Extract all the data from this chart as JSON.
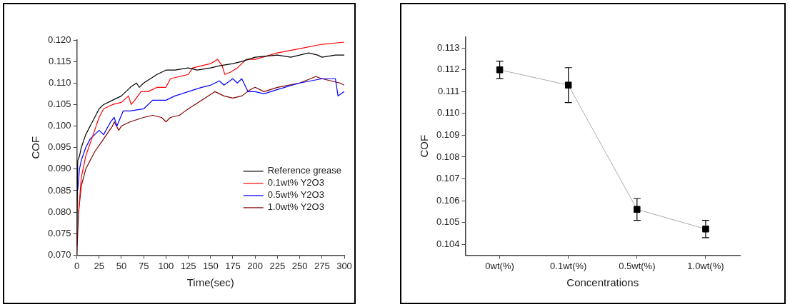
{
  "chart_data": [
    {
      "type": "line",
      "xlabel": "Time(sec)",
      "ylabel": "COF",
      "xlim": [
        0,
        300
      ],
      "xticks": [
        0,
        25,
        50,
        75,
        100,
        125,
        150,
        175,
        200,
        225,
        250,
        275,
        300
      ],
      "ylim": [
        0.07,
        0.12
      ],
      "yticks": [
        {
          "value": 0.07,
          "label": "0.070"
        },
        {
          "value": 0.075,
          "label": "0.075"
        },
        {
          "value": 0.08,
          "label": "0.080"
        },
        {
          "value": 0.085,
          "label": "0.085"
        },
        {
          "value": 0.09,
          "label": "0.090"
        },
        {
          "value": 0.095,
          "label": "0.095"
        },
        {
          "value": 0.1,
          "label": "0.100"
        },
        {
          "value": 0.105,
          "label": "0.105"
        },
        {
          "value": 0.11,
          "label": "0.110"
        },
        {
          "value": 0.115,
          "label": "0.115"
        },
        {
          "value": 0.12,
          "label": "0.120"
        }
      ],
      "grid": false,
      "legend": "bottom right",
      "marker": "none",
      "line_style": "solid",
      "series": [
        {
          "name": "Reference grease",
          "color": "#000000",
          "x": [
            0,
            1,
            3,
            5,
            10,
            15,
            20,
            25,
            30,
            40,
            50,
            60,
            67,
            70,
            75,
            90,
            100,
            110,
            125,
            135,
            150,
            160,
            175,
            185,
            200,
            225,
            240,
            260,
            270,
            275,
            290,
            300
          ],
          "values": [
            0.072,
            0.092,
            0.093,
            0.095,
            0.098,
            0.1,
            0.102,
            0.104,
            0.105,
            0.106,
            0.107,
            0.109,
            0.11,
            0.109,
            0.11,
            0.112,
            0.113,
            0.113,
            0.1135,
            0.113,
            0.1135,
            0.114,
            0.1145,
            0.115,
            0.116,
            0.1165,
            0.116,
            0.117,
            0.1165,
            0.116,
            0.1165,
            0.1165
          ]
        },
        {
          "name": "0.1wt% Y2O3",
          "color": "#ff0000",
          "x": [
            2,
            5,
            10,
            15,
            20,
            25,
            30,
            40,
            50,
            58,
            61,
            65,
            72,
            80,
            90,
            100,
            105,
            115,
            125,
            130,
            150,
            158,
            163,
            166,
            172,
            180,
            190,
            200,
            225,
            250,
            275,
            300
          ],
          "values": [
            0.08,
            0.088,
            0.093,
            0.096,
            0.099,
            0.102,
            0.104,
            0.105,
            0.1055,
            0.107,
            0.105,
            0.106,
            0.108,
            0.108,
            0.109,
            0.109,
            0.111,
            0.1115,
            0.112,
            0.1135,
            0.1145,
            0.1155,
            0.114,
            0.112,
            0.1125,
            0.1135,
            0.1155,
            0.1155,
            0.117,
            0.118,
            0.119,
            0.1195
          ]
        },
        {
          "name": "0.5wt% Y2O3",
          "color": "#0000ff",
          "x": [
            1,
            3,
            5,
            10,
            15,
            20,
            25,
            30,
            38,
            42,
            45,
            52,
            60,
            75,
            85,
            100,
            110,
            125,
            140,
            150,
            160,
            165,
            175,
            180,
            185,
            192,
            200,
            210,
            225,
            250,
            275,
            290,
            293,
            300
          ],
          "values": [
            0.085,
            0.09,
            0.092,
            0.095,
            0.097,
            0.098,
            0.099,
            0.098,
            0.101,
            0.102,
            0.1,
            0.1035,
            0.1035,
            0.104,
            0.106,
            0.106,
            0.107,
            0.108,
            0.109,
            0.1095,
            0.1105,
            0.1095,
            0.111,
            0.11,
            0.111,
            0.108,
            0.108,
            0.1075,
            0.1085,
            0.11,
            0.111,
            0.111,
            0.107,
            0.108
          ]
        },
        {
          "name": "1.0wt% Y2O3",
          "color": "#800000",
          "x": [
            0,
            2,
            5,
            10,
            15,
            20,
            30,
            40,
            42,
            47,
            50,
            60,
            75,
            85,
            95,
            100,
            105,
            115,
            125,
            140,
            155,
            165,
            175,
            185,
            195,
            200,
            210,
            225,
            250,
            268,
            275,
            285,
            295,
            300
          ],
          "values": [
            0.07,
            0.08,
            0.086,
            0.09,
            0.092,
            0.094,
            0.097,
            0.1,
            0.101,
            0.099,
            0.1,
            0.101,
            0.102,
            0.1025,
            0.102,
            0.101,
            0.102,
            0.1025,
            0.104,
            0.106,
            0.108,
            0.107,
            0.1065,
            0.107,
            0.1085,
            0.109,
            0.108,
            0.109,
            0.11,
            0.1115,
            0.111,
            0.1105,
            0.11,
            0.1095
          ]
        }
      ]
    },
    {
      "type": "line",
      "xlabel": "Concentrations",
      "ylabel": "COF",
      "categories": [
        "0wt(%)",
        "0.1wt(%)",
        "0.5wt(%)",
        "1.0wt(%)"
      ],
      "ylim": [
        0.1035,
        0.1135
      ],
      "yticks": [
        0.104,
        0.105,
        0.106,
        0.107,
        0.108,
        0.109,
        {
          "value": 0.11,
          "label": "0.110"
        },
        0.111,
        0.112,
        0.113
      ],
      "grid": false,
      "legend": false,
      "marker": "square",
      "line_style": "solid",
      "series": [
        {
          "color": "#000000",
          "values": [
            0.112,
            0.1113,
            0.1056,
            0.1047
          ],
          "errors": [
            0.0004,
            0.0008,
            0.0005,
            0.0004
          ]
        }
      ]
    }
  ]
}
